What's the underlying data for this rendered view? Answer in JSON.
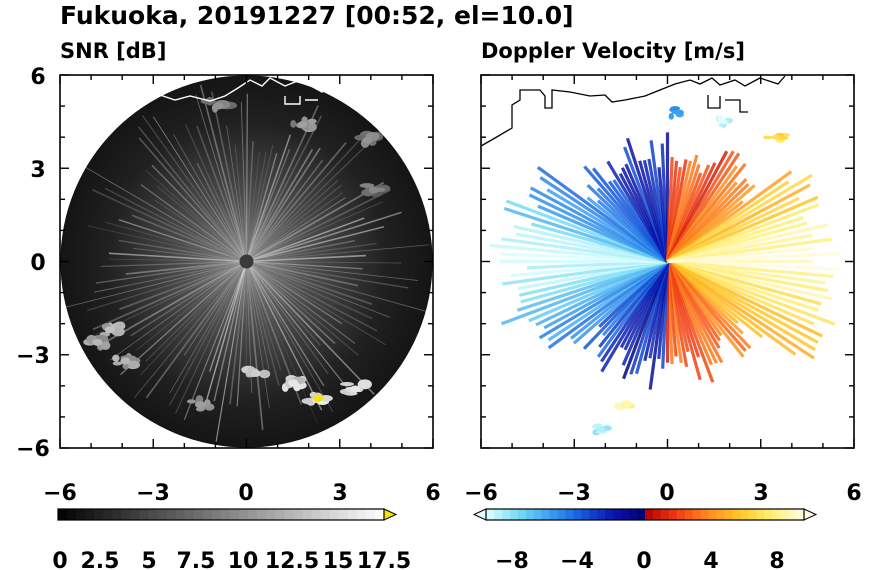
{
  "title": "Fukuoka, 20191227 [00:52, el=10.0]",
  "chart_data": [
    {
      "type": "heatmap",
      "title": "SNR [dB]",
      "xlim": [
        -6,
        6
      ],
      "ylim": [
        -6,
        6
      ],
      "xticks": [
        "−6",
        "−3",
        "0",
        "3",
        "6"
      ],
      "yticks": [
        "6",
        "3",
        "0",
        "−3",
        "−6"
      ],
      "colorbar": {
        "range": [
          0,
          18
        ],
        "ticks": [
          "0",
          "2.5",
          "5",
          "7.5",
          "10",
          "12.5",
          "15",
          "17.5"
        ],
        "extend": "max"
      },
      "radar_range_km": 6,
      "echoes": [
        {
          "x": 0.3,
          "y": -3.6,
          "snr": 14
        },
        {
          "x": 1.5,
          "y": -3.9,
          "snr": 16
        },
        {
          "x": 2.3,
          "y": -4.4,
          "snr": 17
        },
        {
          "x": 3.5,
          "y": -4.1,
          "snr": 16
        },
        {
          "x": -4.4,
          "y": -2.2,
          "snr": 13
        },
        {
          "x": -4.8,
          "y": -2.6,
          "snr": 12
        },
        {
          "x": -3.9,
          "y": -3.2,
          "snr": 12
        },
        {
          "x": -0.9,
          "y": 5.0,
          "snr": 9
        },
        {
          "x": 1.8,
          "y": 4.4,
          "snr": 10
        },
        {
          "x": 3.9,
          "y": 3.9,
          "snr": 9
        },
        {
          "x": -1.5,
          "y": -4.6,
          "snr": 10
        },
        {
          "x": 4.1,
          "y": 2.3,
          "snr": 8
        }
      ]
    },
    {
      "type": "heatmap",
      "title": "Doppler Velocity [m/s]",
      "xlim": [
        -6,
        6
      ],
      "ylim": [
        -6,
        6
      ],
      "xticks": [
        "−6",
        "−3",
        "0",
        "3",
        "6"
      ],
      "colorbar": {
        "range": [
          -10,
          10
        ],
        "ticks": [
          "−8",
          "−4",
          "0",
          "4",
          "8"
        ],
        "extend": "both"
      },
      "echoes": [
        {
          "x": 0.4,
          "y": 4.8,
          "v": -6
        },
        {
          "x": 1.8,
          "y": 4.5,
          "v": -10
        },
        {
          "x": -1.3,
          "y": -4.6,
          "v": 9
        },
        {
          "x": -2.1,
          "y": -5.4,
          "v": -9
        },
        {
          "x": 3.5,
          "y": 4.0,
          "v": 7
        }
      ]
    }
  ],
  "colors": {
    "snr_yellow": "#f4e600",
    "velocity_neg_dark": "#00008b",
    "velocity_pos_dark": "#cc0000"
  }
}
